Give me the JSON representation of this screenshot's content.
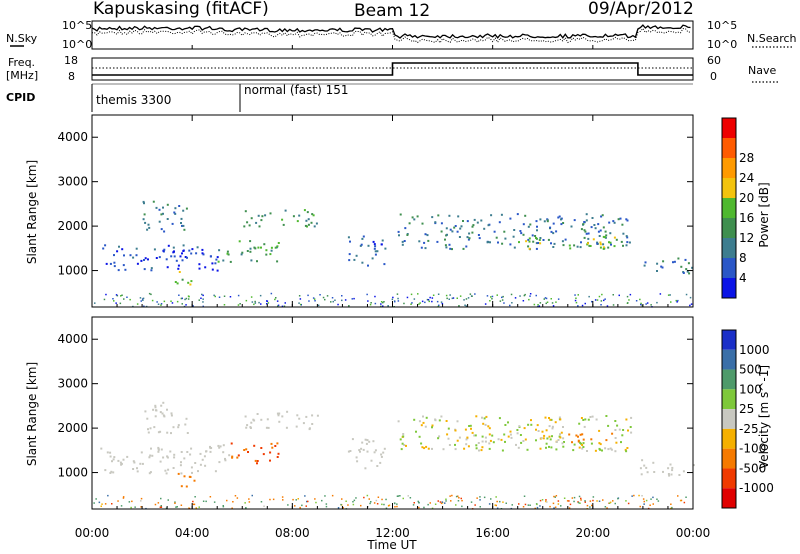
{
  "header": {
    "station": "Kapuskasing (fitACF)",
    "beam": "Beam 12",
    "date": "09/Apr/2012"
  },
  "nsky_panel": {
    "left_label": "N.Sky",
    "right_label": "N.Search",
    "left_ticks": [
      "10^5",
      "10^0"
    ],
    "right_ticks": [
      "10^5",
      "10^0"
    ]
  },
  "freq_panel": {
    "left_label_line1": "Freq.",
    "left_label_line2": "[MHz]",
    "right_label": "Nave",
    "left_ticks": [
      "18",
      "8"
    ],
    "right_ticks": [
      "60",
      "0"
    ]
  },
  "cpid": {
    "label": "CPID",
    "mode1": "themis 3300",
    "mode2": "normal (fast) 151"
  },
  "xaxis": {
    "label": "Time UT",
    "ticks": [
      "00:00",
      "04:00",
      "08:00",
      "12:00",
      "16:00",
      "20:00",
      "00:00"
    ]
  },
  "power_panel": {
    "ylabel": "Slant Range [km]",
    "yticks": [
      "1000",
      "2000",
      "3000",
      "4000"
    ],
    "cbar_label": "Power [dB]",
    "cbar_ticks": [
      "4",
      "8",
      "12",
      "16",
      "20",
      "24",
      "28"
    ],
    "cbar_colors": [
      "#0b14e6",
      "#2a57c7",
      "#3d7d8f",
      "#3f8f4f",
      "#4fb82f",
      "#f3c30d",
      "#ff9a00",
      "#ff5b00",
      "#ee0000"
    ]
  },
  "velocity_panel": {
    "ylabel": "Slant Range [km]",
    "yticks": [
      "1000",
      "2000",
      "3000",
      "4000"
    ],
    "cbar_label": "Velocity [m s^-1]",
    "cbar_ticks": [
      "1000",
      "500",
      "100",
      "25",
      "-25",
      "-100",
      "-500",
      "-1000"
    ],
    "cbar_colors": [
      "#1a2fc8",
      "#3a6fa8",
      "#4e9a6a",
      "#7ec83a",
      "#c8c8c0",
      "#f5b000",
      "#f57a00",
      "#f03a00",
      "#e00000"
    ]
  },
  "chart_data": {
    "type": "heatmap",
    "time_range_hours": [
      0,
      24
    ],
    "range_km": [
      180,
      4500
    ],
    "power_regions": [
      {
        "t": [
          0.3,
          5.0
        ],
        "r": [
          1000,
          1600
        ],
        "db": 6
      },
      {
        "t": [
          2.0,
          3.8
        ],
        "r": [
          1900,
          2600
        ],
        "db": 10
      },
      {
        "t": [
          3.3,
          4.2
        ],
        "r": [
          700,
          1000
        ],
        "db": 18
      },
      {
        "t": [
          5.0,
          7.5
        ],
        "r": [
          1200,
          1700
        ],
        "db": 16
      },
      {
        "t": [
          6.0,
          9.0
        ],
        "r": [
          2000,
          2400
        ],
        "db": 14
      },
      {
        "t": [
          10.2,
          11.7
        ],
        "r": [
          1100,
          1800
        ],
        "db": 8
      },
      {
        "t": [
          12.2,
          21.5
        ],
        "r": [
          1500,
          2300
        ],
        "db": 10
      },
      {
        "t": [
          17.0,
          21.0
        ],
        "r": [
          1500,
          1800
        ],
        "db": 18
      },
      {
        "t": [
          21.8,
          24.0
        ],
        "r": [
          950,
          1300
        ],
        "db": 10
      }
    ],
    "velocity_regions": [
      {
        "t": [
          3.3,
          4.2
        ],
        "r": [
          700,
          1000
        ],
        "v": -300
      },
      {
        "t": [
          5.5,
          7.5
        ],
        "r": [
          1200,
          1800
        ],
        "v": -500
      },
      {
        "t": [
          12.2,
          21.5
        ],
        "r": [
          1500,
          2300
        ],
        "v": 0
      },
      {
        "t": [
          19.0,
          20.8
        ],
        "r": [
          1700,
          1900
        ],
        "v": -200
      }
    ]
  }
}
